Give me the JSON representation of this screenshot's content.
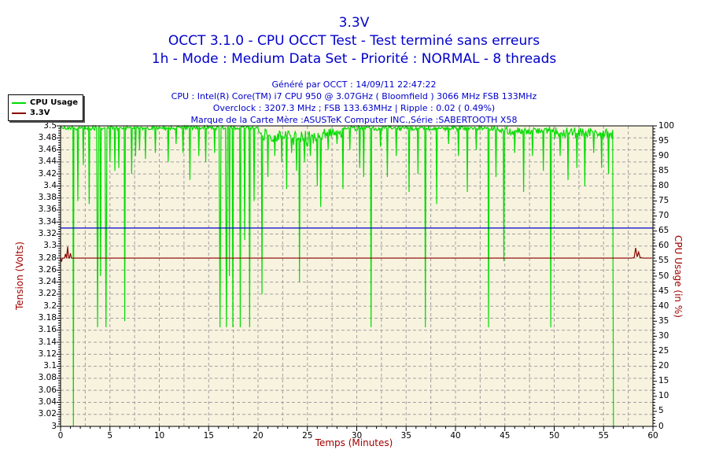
{
  "header": {
    "title": "3.3V",
    "subtitle1": "OCCT 3.1.0 - CPU OCCT Test - Test terminé sans erreurs",
    "subtitle2": "1h - Mode : Medium Data Set - Priorité : NORMAL - 8 threads",
    "info_lines": [
      "Généré par OCCT : 14/09/11 22:47:22",
      "CPU : Intel(R) Core(TM) i7 CPU 950 @ 3.07GHz ( Bloomfield ) 3066 MHz FSB 133MHz",
      "Overclock : 3207.3 MHz ; FSB 133.63MHz | Ripple : 0.02 ( 0.49%)",
      "Marque de la Carte Mère :ASUSTeK Computer INC.,Série :SABERTOOTH X58"
    ]
  },
  "legend": {
    "items": [
      {
        "label": "CPU Usage",
        "color": "#00DC00"
      },
      {
        "label": "3.3V",
        "color": "#8B0000"
      }
    ]
  },
  "colors": {
    "title_text": "#0000CC",
    "axis_title_text": "#A00000",
    "plot_background": "#F8F3DF",
    "plot_border": "#000000",
    "grid": "#A0A0A0",
    "cpu_line": "#00DC00",
    "voltage_line": "#8B0000",
    "marker_line": "#0000CC",
    "tick_text": "#000000"
  },
  "chart_data": {
    "type": "line",
    "title": "3.3V",
    "xlabel": "Temps (Minutes)",
    "ylabel_left": "Tension (Volts)",
    "ylabel_right": "CPU Usage (in %)",
    "xlim": [
      0,
      60
    ],
    "ylim_left": [
      3.0,
      3.5
    ],
    "ylim_right": [
      0,
      100
    ],
    "grid": {
      "vertical_step_minutes": 2.5,
      "horizontal_step_volts": 0.02,
      "style": "dashed"
    },
    "legend_position": "top-left",
    "left_tick_labels": [
      "3.5",
      "3.48",
      "3.46",
      "3.44",
      "3.42",
      "3.4",
      "3.38",
      "3.36",
      "3.34",
      "3.32",
      "3.3",
      "3.28",
      "3.26",
      "3.24",
      "3.22",
      "3.2",
      "3.18",
      "3.16",
      "3.14",
      "3.12",
      "3.1",
      "3.08",
      "3.06",
      "3.04",
      "3.02",
      "3"
    ],
    "right_tick_labels": [
      "100",
      "95",
      "90",
      "85",
      "80",
      "75",
      "70",
      "65",
      "60",
      "55",
      "50",
      "45",
      "40",
      "35",
      "30",
      "25",
      "20",
      "15",
      "10",
      "5",
      "0"
    ],
    "x_tick_labels": [
      "0",
      "5",
      "10",
      "15",
      "20",
      "25",
      "30",
      "35",
      "40",
      "45",
      "50",
      "55",
      "60"
    ],
    "series": [
      {
        "name": "CPU Usage",
        "axis": "right",
        "color": "#00DC00",
        "description": "CPU usage holds ~99-100% with frequent transient drops; test ends at 56 min with drop to 0%",
        "baseline_segments": [
          {
            "from": 0.0,
            "to": 20.0,
            "base": 99.3,
            "noise": 0.7
          },
          {
            "from": 20.0,
            "to": 23.3,
            "base": 96.8,
            "noise": 2.2
          },
          {
            "from": 23.3,
            "to": 26.5,
            "base": 95.8,
            "noise": 2.6
          },
          {
            "from": 26.5,
            "to": 28.5,
            "base": 97.6,
            "noise": 1.6
          },
          {
            "from": 28.5,
            "to": 44.0,
            "base": 99.2,
            "noise": 0.8
          },
          {
            "from": 44.0,
            "to": 50.0,
            "base": 98.4,
            "noise": 1.4
          },
          {
            "from": 50.0,
            "to": 56.0,
            "base": 97.6,
            "noise": 2.0
          }
        ],
        "spikes": [
          [
            1.3,
            0,
            0.05
          ],
          [
            1.75,
            75
          ],
          [
            2.3,
            87
          ],
          [
            2.9,
            74
          ],
          [
            3.75,
            33,
            0.1
          ],
          [
            4.05,
            50
          ],
          [
            4.6,
            33,
            0.1
          ],
          [
            5.0,
            88
          ],
          [
            5.5,
            85
          ],
          [
            5.9,
            86
          ],
          [
            6.5,
            35
          ],
          [
            7.2,
            84
          ],
          [
            7.6,
            90
          ],
          [
            8.0,
            92
          ],
          [
            8.6,
            89
          ],
          [
            9.6,
            91
          ],
          [
            10.9,
            88
          ],
          [
            11.7,
            94
          ],
          [
            12.4,
            91
          ],
          [
            13.1,
            82
          ],
          [
            14.0,
            90
          ],
          [
            14.7,
            88
          ],
          [
            15.6,
            91
          ],
          [
            16.15,
            33,
            0.1
          ],
          [
            16.8,
            33,
            0.1
          ],
          [
            17.1,
            50
          ],
          [
            17.45,
            33
          ],
          [
            18.2,
            33
          ],
          [
            18.65,
            62
          ],
          [
            19.15,
            33
          ],
          [
            19.6,
            75
          ],
          [
            20.4,
            44
          ],
          [
            21.0,
            83
          ],
          [
            21.7,
            90
          ],
          [
            22.4,
            88
          ],
          [
            22.9,
            79
          ],
          [
            23.4,
            91
          ],
          [
            23.9,
            85
          ],
          [
            24.2,
            48
          ],
          [
            24.7,
            88
          ],
          [
            25.3,
            90
          ],
          [
            26.0,
            80
          ],
          [
            26.35,
            73
          ],
          [
            27.1,
            92
          ],
          [
            28.0,
            94
          ],
          [
            28.6,
            79
          ],
          [
            29.3,
            92
          ],
          [
            30.3,
            86
          ],
          [
            30.7,
            83
          ],
          [
            31.45,
            33
          ],
          [
            32.4,
            93
          ],
          [
            33.1,
            83
          ],
          [
            34.0,
            90
          ],
          [
            35.3,
            78
          ],
          [
            36.2,
            84
          ],
          [
            36.95,
            33
          ],
          [
            38.1,
            74
          ],
          [
            39.3,
            94
          ],
          [
            40.3,
            90
          ],
          [
            41.2,
            78
          ],
          [
            42.1,
            92
          ],
          [
            43.35,
            33
          ],
          [
            44.1,
            83
          ],
          [
            44.9,
            55
          ],
          [
            46.0,
            91
          ],
          [
            46.9,
            78
          ],
          [
            47.8,
            90
          ],
          [
            48.9,
            85
          ],
          [
            49.65,
            33
          ],
          [
            50.6,
            90
          ],
          [
            51.4,
            82
          ],
          [
            52.3,
            86
          ],
          [
            53.1,
            80
          ],
          [
            54.0,
            91
          ],
          [
            54.8,
            86
          ],
          [
            55.5,
            84
          ]
        ],
        "end_drop": {
          "x": 56.0,
          "value": 0
        }
      },
      {
        "name": "3.3V",
        "axis": "left",
        "color": "#8B0000",
        "description": "3.3V rail flat at 3.28 V with small ripples near start and ~58.3 min",
        "points": [
          [
            0.0,
            3.281
          ],
          [
            0.08,
            3.274
          ],
          [
            0.2,
            3.28
          ],
          [
            0.4,
            3.28
          ],
          [
            0.5,
            3.287
          ],
          [
            0.6,
            3.28
          ],
          [
            0.72,
            3.299
          ],
          [
            0.8,
            3.281
          ],
          [
            0.9,
            3.28
          ],
          [
            1.0,
            3.288
          ],
          [
            1.1,
            3.28
          ],
          [
            10,
            3.28
          ],
          [
            20,
            3.28
          ],
          [
            30,
            3.28
          ],
          [
            40,
            3.28
          ],
          [
            50,
            3.28
          ],
          [
            57.9,
            3.28
          ],
          [
            58.1,
            3.281
          ],
          [
            58.25,
            3.297
          ],
          [
            58.4,
            3.282
          ],
          [
            58.55,
            3.29
          ],
          [
            58.7,
            3.281
          ],
          [
            59.0,
            3.28
          ],
          [
            59.9,
            3.28
          ]
        ]
      },
      {
        "name": "3.33V reference line",
        "axis": "left",
        "color": "#0000CC",
        "points": [
          [
            0,
            3.33
          ],
          [
            60,
            3.33
          ]
        ]
      }
    ]
  }
}
